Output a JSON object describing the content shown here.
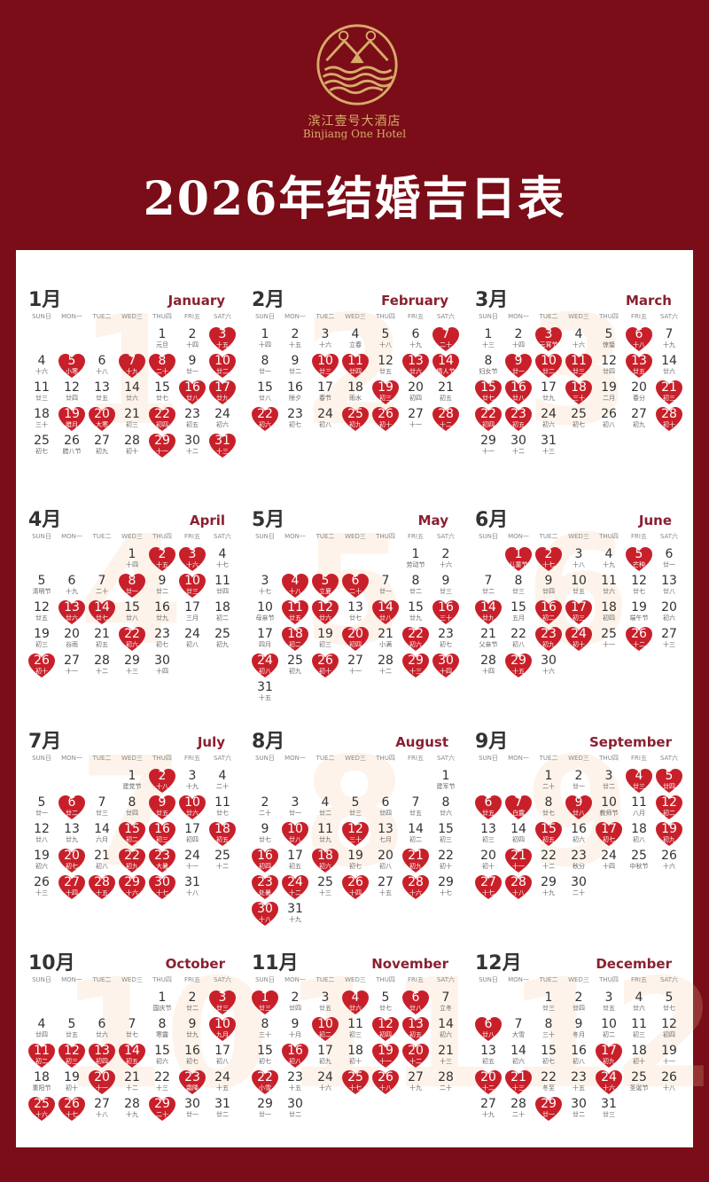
{
  "header": {
    "hotel_name_cn": "滨江壹号大酒店",
    "hotel_name_en": "Binjiang One Hotel",
    "title": "2026年结婚吉日表",
    "logo": "hotel-logo-mountain-waves"
  },
  "colors": {
    "background": "#7a0d17",
    "heart": "#c8202a",
    "logo_gold": "#d8aa6a",
    "month_en": "#8a2030"
  },
  "weekdays": [
    "SUN日",
    "MON一",
    "TUE二",
    "WED三",
    "THU四",
    "FRI五",
    "SAT六"
  ],
  "year": 2026,
  "months": [
    {
      "cn": "1月",
      "en": "January",
      "watermark": "1",
      "lucky": [
        3,
        5,
        7,
        8,
        10,
        16,
        17,
        19,
        20,
        22,
        29,
        31
      ],
      "lunar": [
        "元旦",
        "十四",
        "十五",
        "十六",
        "小寒",
        "十八",
        "十九",
        "二十",
        "廿一",
        "廿二",
        "廿三",
        "廿四",
        "廿五",
        "廿六",
        "廿七",
        "廿八",
        "廿九",
        "三十",
        "腊月",
        "大寒",
        "初三",
        "初四",
        "初五",
        "初六",
        "初七",
        "腊八节",
        "初九",
        "初十",
        "十一",
        "十二",
        "十三"
      ]
    },
    {
      "cn": "2月",
      "en": "February",
      "watermark": "2",
      "lucky": [
        7,
        10,
        11,
        13,
        14,
        19,
        22,
        25,
        26,
        28
      ],
      "lunar": [
        "十四",
        "十五",
        "十六",
        "立春",
        "十八",
        "十九",
        "二十",
        "廿一",
        "廿二",
        "廿三",
        "廿四",
        "廿五",
        "廿六",
        "情人节",
        "廿八",
        "除夕",
        "春节",
        "雨水",
        "初三",
        "初四",
        "初五",
        "初六",
        "初七",
        "初八",
        "初九",
        "初十",
        "十一",
        "十二"
      ]
    },
    {
      "cn": "3月",
      "en": "March",
      "watermark": "3",
      "lucky": [
        3,
        6,
        9,
        10,
        11,
        13,
        15,
        16,
        18,
        21,
        22,
        23,
        28
      ],
      "lunar": [
        "十三",
        "十四",
        "元宵节",
        "十六",
        "惊蛰",
        "十八",
        "十九",
        "妇女节",
        "廿一",
        "廿二",
        "廿三",
        "廿四",
        "廿五",
        "廿六",
        "廿七",
        "廿八",
        "廿九",
        "三十",
        "二月",
        "春分",
        "初三",
        "初四",
        "初五",
        "初六",
        "初七",
        "初八",
        "初九",
        "初十",
        "十一",
        "十二",
        "十三"
      ]
    },
    {
      "cn": "4月",
      "en": "April",
      "watermark": "4",
      "lucky": [
        2,
        3,
        8,
        10,
        13,
        14,
        22,
        26
      ],
      "lunar": [
        "十四",
        "十五",
        "十六",
        "十七",
        "清明节",
        "十九",
        "二十",
        "廿一",
        "廿二",
        "廿三",
        "廿四",
        "廿五",
        "廿六",
        "廿七",
        "廿八",
        "廿九",
        "三月",
        "初二",
        "初三",
        "谷雨",
        "初五",
        "初六",
        "初七",
        "初八",
        "初九",
        "初十",
        "十一",
        "十二",
        "十三",
        "十四"
      ]
    },
    {
      "cn": "5月",
      "en": "May",
      "watermark": "5",
      "lucky": [
        4,
        5,
        6,
        11,
        12,
        14,
        16,
        18,
        20,
        22,
        24,
        26,
        29,
        30
      ],
      "lunar": [
        "劳动节",
        "十六",
        "十七",
        "十八",
        "立夏",
        "二十",
        "廿一",
        "廿二",
        "廿三",
        "母亲节",
        "廿五",
        "廿六",
        "廿七",
        "廿八",
        "廿九",
        "三十",
        "四月",
        "初二",
        "初三",
        "初四",
        "小满",
        "初六",
        "初七",
        "初八",
        "初九",
        "初十",
        "十一",
        "十二",
        "十三",
        "十四",
        "十五"
      ]
    },
    {
      "cn": "6月",
      "en": "June",
      "watermark": "6",
      "lucky": [
        1,
        2,
        5,
        14,
        16,
        17,
        23,
        24,
        26,
        29
      ],
      "lunar": [
        "儿童节",
        "十七",
        "十八",
        "十九",
        "芒种",
        "廿一",
        "廿二",
        "廿三",
        "廿四",
        "廿五",
        "廿六",
        "廿七",
        "廿八",
        "廿九",
        "五月",
        "初二",
        "初三",
        "初四",
        "端午节",
        "初六",
        "父亲节",
        "初八",
        "初九",
        "初十",
        "十一",
        "十二",
        "十三",
        "十四",
        "十五",
        "十六"
      ]
    },
    {
      "cn": "7月",
      "en": "July",
      "watermark": "7",
      "lucky": [
        2,
        6,
        9,
        10,
        15,
        16,
        18,
        20,
        22,
        23,
        27,
        28,
        29,
        30
      ],
      "lunar": [
        "建党节",
        "十八",
        "十九",
        "二十",
        "廿一",
        "廿二",
        "廿三",
        "廿四",
        "廿五",
        "廿六",
        "廿七",
        "廿八",
        "廿九",
        "六月",
        "初二",
        "初三",
        "初四",
        "初五",
        "初六",
        "初七",
        "初八",
        "初九",
        "大暑",
        "十一",
        "十二",
        "十三",
        "十四",
        "十五",
        "十六",
        "十七",
        "十八"
      ]
    },
    {
      "cn": "8月",
      "en": "August",
      "watermark": "8",
      "lucky": [
        10,
        12,
        16,
        18,
        21,
        23,
        24,
        26,
        28,
        30
      ],
      "lunar": [
        "建军节",
        "二十",
        "廿一",
        "廿二",
        "廿三",
        "廿四",
        "廿五",
        "廿六",
        "廿七",
        "廿八",
        "廿九",
        "三十",
        "七月",
        "初二",
        "初三",
        "初四",
        "初五",
        "初六",
        "初七",
        "初八",
        "初九",
        "初十",
        "处暑",
        "十二",
        "十三",
        "十四",
        "十五",
        "十六",
        "十七",
        "十八",
        "十九"
      ]
    },
    {
      "cn": "9月",
      "en": "September",
      "watermark": "9",
      "lucky": [
        4,
        5,
        6,
        7,
        9,
        12,
        15,
        17,
        19,
        21,
        27,
        28
      ],
      "lunar": [
        "二十",
        "廿一",
        "廿二",
        "廿三",
        "廿四",
        "廿五",
        "白露",
        "廿七",
        "廿八",
        "教师节",
        "八月",
        "初二",
        "初三",
        "初四",
        "初五",
        "初六",
        "初七",
        "初八",
        "初九",
        "初十",
        "十一",
        "十二",
        "秋分",
        "十四",
        "中秋节",
        "十六",
        "十七",
        "十八",
        "十九",
        "二十"
      ]
    },
    {
      "cn": "10月",
      "en": "October",
      "watermark": "10",
      "lucky": [
        3,
        10,
        11,
        12,
        13,
        14,
        20,
        23,
        25,
        26,
        29
      ],
      "lunar": [
        "国庆节",
        "廿二",
        "廿三",
        "廿四",
        "廿五",
        "廿六",
        "廿七",
        "寒露",
        "廿九",
        "九月",
        "初二",
        "初三",
        "初四",
        "初五",
        "初六",
        "初七",
        "初八",
        "重阳节",
        "初十",
        "十一",
        "十二",
        "十三",
        "霜降",
        "十五",
        "十六",
        "十七",
        "十八",
        "十九",
        "二十",
        "廿一",
        "廿二"
      ]
    },
    {
      "cn": "11月",
      "en": "November",
      "watermark": "11",
      "lucky": [
        1,
        4,
        6,
        10,
        12,
        13,
        16,
        19,
        20,
        22,
        25,
        26
      ],
      "lunar": [
        "廿三",
        "廿四",
        "廿五",
        "廿六",
        "廿七",
        "廿八",
        "立冬",
        "三十",
        "十月",
        "初二",
        "初三",
        "初四",
        "初五",
        "初六",
        "初七",
        "初八",
        "初九",
        "初十",
        "十一",
        "十二",
        "十三",
        "小雪",
        "十五",
        "十六",
        "十七",
        "十八",
        "十九",
        "二十",
        "廿一",
        "廿二"
      ]
    },
    {
      "cn": "12月",
      "en": "December",
      "watermark": "12",
      "lucky": [
        6,
        17,
        20,
        21,
        24,
        29
      ],
      "lunar": [
        "廿三",
        "廿四",
        "廿五",
        "廿六",
        "廿七",
        "廿八",
        "大雪",
        "三十",
        "冬月",
        "初二",
        "初三",
        "初四",
        "初五",
        "初六",
        "初七",
        "初八",
        "初九",
        "初十",
        "十一",
        "十二",
        "十三",
        "冬至",
        "十五",
        "十六",
        "圣诞节",
        "十八",
        "十九",
        "二十",
        "廿一",
        "廿二",
        "廿三"
      ]
    }
  ]
}
